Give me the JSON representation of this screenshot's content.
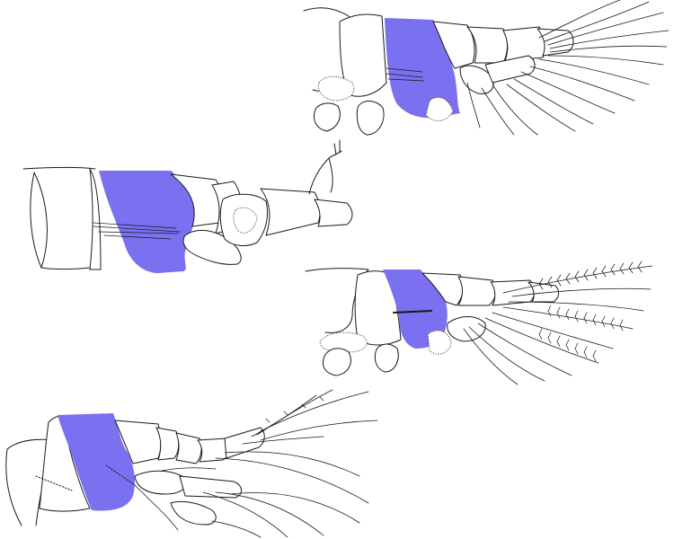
{
  "figure": {
    "highlight_color": "#7b70f0",
    "line_color": "#1a1a1a",
    "background": "#ffffff",
    "panels": [
      {
        "id": "panel-1",
        "subject": "appendage-upper-right"
      },
      {
        "id": "panel-2",
        "subject": "appendage-middle-left"
      },
      {
        "id": "panel-3",
        "subject": "appendage-middle-right"
      },
      {
        "id": "panel-4",
        "subject": "appendage-lower-left"
      }
    ]
  }
}
